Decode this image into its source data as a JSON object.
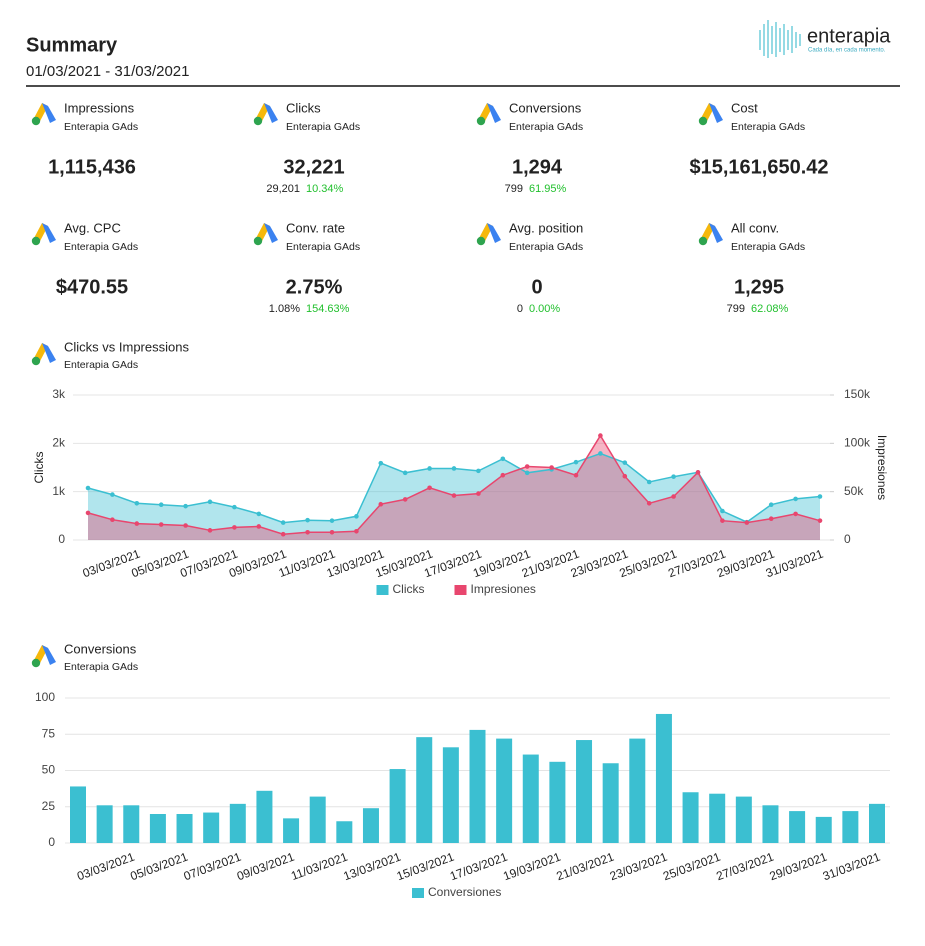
{
  "header": {
    "title": "Summary",
    "date_range": "01/03/2021 - 31/03/2021",
    "logo": "enterapia",
    "logo_tagline": "Cada día, en cada momento."
  },
  "kpis": [
    {
      "name": "Impressions",
      "source": "Enterapia GAds",
      "value": "1,115,436"
    },
    {
      "name": "Clicks",
      "source": "Enterapia GAds",
      "value": "32,221",
      "previous": "29,201",
      "change": "10.34%"
    },
    {
      "name": "Conversions",
      "source": "Enterapia GAds",
      "value": "1,294",
      "previous": "799",
      "change": "61.95%"
    },
    {
      "name": "Cost",
      "source": "Enterapia GAds",
      "value": "$15,161,650.42"
    },
    {
      "name": "Avg. CPC",
      "source": "Enterapia GAds",
      "value": "$470.55"
    },
    {
      "name": "Conv. rate",
      "source": "Enterapia GAds",
      "value": "2.75%",
      "previous": "1.08%",
      "change": "154.63%"
    },
    {
      "name": "Avg. position",
      "source": "Enterapia GAds",
      "value": "0",
      "previous": "0",
      "change": "0.00%"
    },
    {
      "name": "All conv.",
      "source": "Enterapia GAds",
      "value": "1,295",
      "previous": "799",
      "change": "62.08%"
    }
  ],
  "chart_data": [
    {
      "type": "area",
      "title": "Clicks vs Impressions",
      "subtitle": "Enterapia GAds",
      "ylabel": "Clicks",
      "y2label": "Impresiones",
      "categories": [
        null,
        null,
        "03/03/2021",
        null,
        "05/03/2021",
        null,
        "07/03/2021",
        null,
        "09/03/2021",
        null,
        "11/03/2021",
        null,
        "13/03/2021",
        null,
        "15/03/2021",
        null,
        "17/03/2021",
        null,
        "19/03/2021",
        null,
        "21/03/2021",
        null,
        "23/03/2021",
        null,
        "25/03/2021",
        null,
        "27/03/2021",
        null,
        "29/03/2021",
        null,
        "31/03/2021"
      ],
      "series": [
        {
          "name": "Clicks",
          "color": "#3bbfd1",
          "values": [
            1075,
            940,
            760,
            730,
            700,
            790,
            680,
            540,
            360,
            410,
            400,
            490,
            1590,
            1390,
            1480,
            1480,
            1430,
            1680,
            1390,
            1460,
            1610,
            1790,
            1600,
            1200,
            1310,
            1400,
            600,
            370,
            730,
            850,
            900
          ]
        },
        {
          "name": "Impresiones",
          "color": "#e8466e",
          "axis": "y2",
          "values": [
            28000,
            21000,
            17000,
            16000,
            15000,
            10000,
            13000,
            14000,
            6000,
            8000,
            8000,
            9000,
            37000,
            42000,
            54000,
            46000,
            48000,
            67000,
            76000,
            75000,
            67000,
            108000,
            66000,
            38000,
            45000,
            70000,
            20000,
            18000,
            22000,
            27000,
            20000
          ]
        }
      ],
      "ylim": [
        0,
        3000
      ],
      "yticks": [
        0,
        {
          "value": 1000,
          "label": "1k"
        },
        {
          "value": 2000,
          "label": "2k"
        },
        {
          "value": 3000,
          "label": "3k"
        }
      ],
      "y2lim": [
        0,
        150000
      ],
      "y2ticks": [
        0,
        {
          "value": 50000,
          "label": "50k"
        },
        {
          "value": 100000,
          "label": "100k"
        },
        {
          "value": 150000,
          "label": "150k"
        }
      ],
      "grid": true
    },
    {
      "type": "bar",
      "title": "Conversions",
      "subtitle": "Enterapia GAds",
      "categories": [
        null,
        null,
        "03/03/2021",
        null,
        "05/03/2021",
        null,
        "07/03/2021",
        null,
        "09/03/2021",
        null,
        "11/03/2021",
        null,
        "13/03/2021",
        null,
        "15/03/2021",
        null,
        "17/03/2021",
        null,
        "19/03/2021",
        null,
        "21/03/2021",
        null,
        "23/03/2021",
        null,
        "25/03/2021",
        null,
        "27/03/2021",
        null,
        "29/03/2021",
        null,
        "31/03/2021"
      ],
      "series": [
        {
          "name": "Conversiones",
          "color": "#3bbfd1",
          "values": [
            39,
            26,
            26,
            20,
            20,
            21,
            27,
            36,
            17,
            32,
            15,
            24,
            51,
            73,
            66,
            78,
            72,
            61,
            56,
            71,
            55,
            72,
            89,
            35,
            34,
            32,
            26,
            22,
            18,
            22,
            27
          ]
        }
      ],
      "ylim": [
        0,
        100
      ],
      "yticks": [
        0,
        25,
        50,
        75,
        100
      ],
      "grid": true
    }
  ]
}
